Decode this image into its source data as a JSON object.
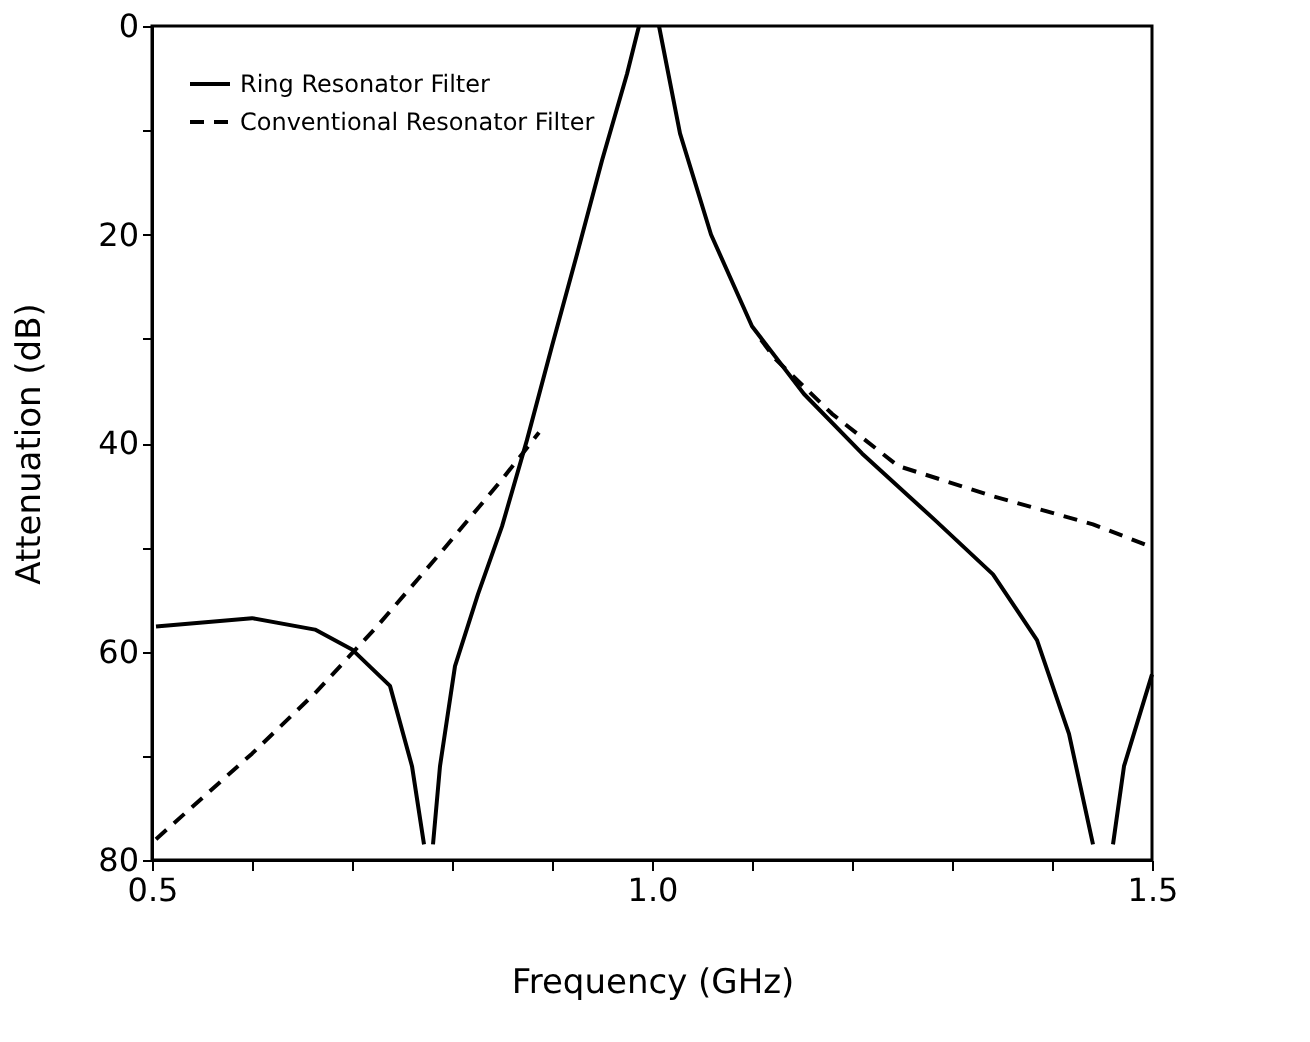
{
  "chart_data": {
    "type": "line",
    "xlabel": "Frequency (GHz)",
    "ylabel": "Attenuation (dB)",
    "xlim": [
      0.5,
      1.5
    ],
    "xticks": [
      0.5,
      {
        "value": 0.6,
        "label": null
      },
      {
        "value": 0.7,
        "label": null
      },
      {
        "value": 0.8,
        "label": null
      },
      {
        "value": 0.9,
        "label": null
      },
      {
        "value": 1.0,
        "label": "1.0"
      },
      {
        "value": 1.1,
        "label": null
      },
      {
        "value": 1.2,
        "label": null
      },
      {
        "value": 1.3,
        "label": null
      },
      {
        "value": 1.4,
        "label": null
      },
      1.5
    ],
    "ylim": [
      80,
      0
    ],
    "yticks": [
      0,
      {
        "value": 10,
        "label": null
      },
      20,
      {
        "value": 30,
        "label": null
      },
      40,
      {
        "value": 50,
        "label": null
      },
      60,
      {
        "value": 70,
        "label": null
      },
      80
    ],
    "grid": false,
    "legend": "top left",
    "marker": "none",
    "series": [
      {
        "name": "Ring Resonator Filter",
        "color": "#000000",
        "line_style": "solid",
        "x": [
          0.504,
          0.6,
          0.663,
          0.7,
          0.738,
          0.76,
          0.772,
          0.776,
          0.781,
          0.788,
          0.803,
          0.826,
          0.85,
          0.875,
          0.9,
          0.925,
          0.95,
          0.975,
          0.987,
          0.997,
          1.007,
          1.028,
          1.059,
          1.1,
          1.152,
          1.21,
          1.283,
          1.341,
          1.385,
          1.417,
          1.441,
          1.451,
          1.461,
          1.472,
          1.5
        ],
        "values": [
          57.6,
          56.8,
          57.9,
          59.8,
          63.3,
          71,
          78.5,
          null,
          78.5,
          71,
          61.4,
          54.5,
          48,
          39.7,
          30.7,
          21.9,
          12.9,
          4.6,
          0,
          null,
          0,
          10.3,
          20,
          28.8,
          35.3,
          41,
          47.4,
          52.6,
          58.9,
          67.9,
          78.5,
          null,
          78.5,
          71,
          62.2
        ]
      },
      {
        "name": "Conventional Resonator Filter",
        "color": "#000000",
        "line_style": "dashed",
        "x": [
          0.504,
          0.6,
          0.663,
          0.725,
          0.788,
          0.85,
          0.887,
          1.0,
          1.109,
          1.124,
          1.18,
          1.246,
          1.341,
          1.441,
          1.5
        ],
        "values": [
          78,
          69.8,
          64,
          57.6,
          50.6,
          43.5,
          39,
          null,
          30.1,
          32,
          37.2,
          42.2,
          45.1,
          47.8,
          50
        ]
      }
    ]
  }
}
